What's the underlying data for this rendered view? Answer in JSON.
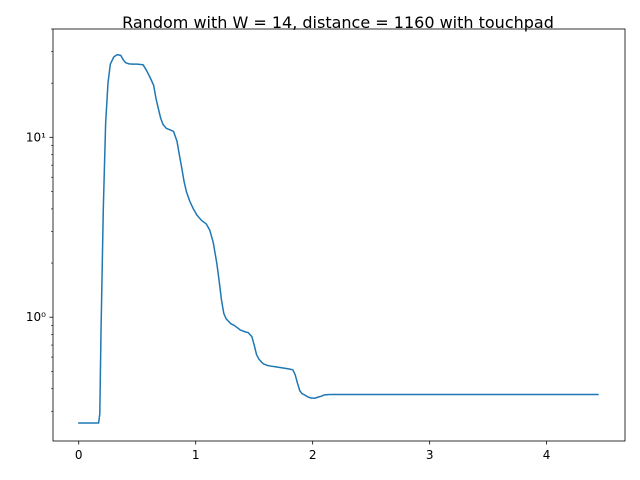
{
  "chart_data": {
    "type": "line",
    "title": "Random with W = 14, distance = 1160 with touchpad",
    "xlabel": "",
    "ylabel": "",
    "yscale": "log",
    "grid": false,
    "xlim": [
      -0.22,
      4.67
    ],
    "ylim": [
      0.205,
      40
    ],
    "x_ticks": [
      0,
      1,
      2,
      3,
      4
    ],
    "x_tick_labels": [
      "0",
      "1",
      "2",
      "3",
      "4"
    ],
    "y_ticks": [
      1,
      10
    ],
    "y_tick_labels": [
      "10⁰",
      "10¹"
    ],
    "series": [
      {
        "color": "#1f77b4",
        "x": [
          0,
          0.1,
          0.17,
          0.18,
          0.19,
          0.21,
          0.23,
          0.25,
          0.27,
          0.3,
          0.33,
          0.36,
          0.38,
          0.4,
          0.43,
          0.46,
          0.5,
          0.55,
          0.58,
          0.61,
          0.64,
          0.66,
          0.68,
          0.7,
          0.72,
          0.75,
          0.78,
          0.81,
          0.84,
          0.86,
          0.88,
          0.9,
          0.92,
          0.95,
          0.98,
          1.01,
          1.05,
          1.09,
          1.12,
          1.15,
          1.18,
          1.2,
          1.22,
          1.24,
          1.26,
          1.28,
          1.3,
          1.33,
          1.36,
          1.38,
          1.4,
          1.42,
          1.45,
          1.48,
          1.5,
          1.52,
          1.54,
          1.56,
          1.58,
          1.61,
          1.64,
          1.68,
          1.72,
          1.76,
          1.8,
          1.83,
          1.85,
          1.87,
          1.89,
          1.91,
          1.93,
          1.96,
          1.99,
          2.02,
          2.05,
          2.08,
          2.1,
          2.15,
          2.5,
          3.0,
          3.5,
          4.0,
          4.44
        ],
        "y": [
          0.258,
          0.258,
          0.258,
          0.29,
          0.8,
          4.0,
          12.0,
          20.0,
          25.5,
          28.0,
          28.8,
          28.5,
          27.0,
          26.0,
          25.6,
          25.5,
          25.5,
          25.3,
          23.5,
          21.5,
          19.5,
          16.5,
          14.5,
          12.8,
          11.8,
          11.2,
          11.0,
          10.8,
          9.5,
          8.0,
          6.8,
          5.7,
          5.0,
          4.4,
          4.0,
          3.7,
          3.45,
          3.3,
          3.05,
          2.6,
          2.0,
          1.6,
          1.25,
          1.05,
          0.98,
          0.95,
          0.92,
          0.9,
          0.87,
          0.85,
          0.84,
          0.83,
          0.82,
          0.78,
          0.7,
          0.62,
          0.585,
          0.565,
          0.55,
          0.54,
          0.535,
          0.53,
          0.525,
          0.52,
          0.515,
          0.51,
          0.48,
          0.43,
          0.39,
          0.375,
          0.37,
          0.36,
          0.355,
          0.355,
          0.36,
          0.365,
          0.37,
          0.372,
          0.372,
          0.372,
          0.372,
          0.372,
          0.372
        ]
      }
    ]
  }
}
